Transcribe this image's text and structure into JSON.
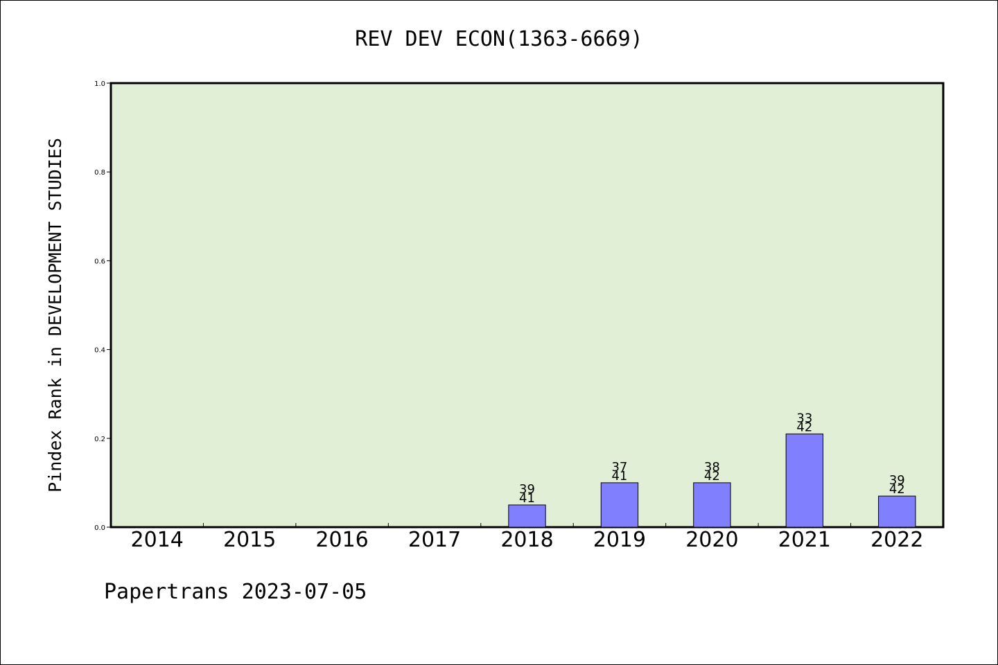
{
  "chart_data": {
    "type": "bar",
    "title": "REV DEV ECON(1363-6669)",
    "ylabel": "Pindex Rank in DEVELOPMENT STUDIES",
    "xlabel": "",
    "categories": [
      "2014",
      "2015",
      "2016",
      "2017",
      "2018",
      "2019",
      "2020",
      "2021",
      "2022"
    ],
    "values": [
      null,
      null,
      null,
      null,
      0.05,
      0.1,
      0.1,
      0.21,
      0.07
    ],
    "bar_labels": [
      null,
      null,
      null,
      null,
      {
        "top": "39",
        "bottom": "41"
      },
      {
        "top": "37",
        "bottom": "41"
      },
      {
        "top": "38",
        "bottom": "42"
      },
      {
        "top": "33",
        "bottom": "42"
      },
      {
        "top": "39",
        "bottom": "42"
      }
    ],
    "ylim": [
      0.0,
      1.0
    ],
    "yticks": [
      "0.0",
      "0.2",
      "0.4",
      "0.6",
      "0.8",
      "1.0"
    ],
    "grid": false,
    "colors": {
      "plot_background": "#e1efd6",
      "bar_fill": "#8080ff",
      "bar_stroke": "#000000"
    }
  },
  "footer": "Papertrans 2023-07-05"
}
